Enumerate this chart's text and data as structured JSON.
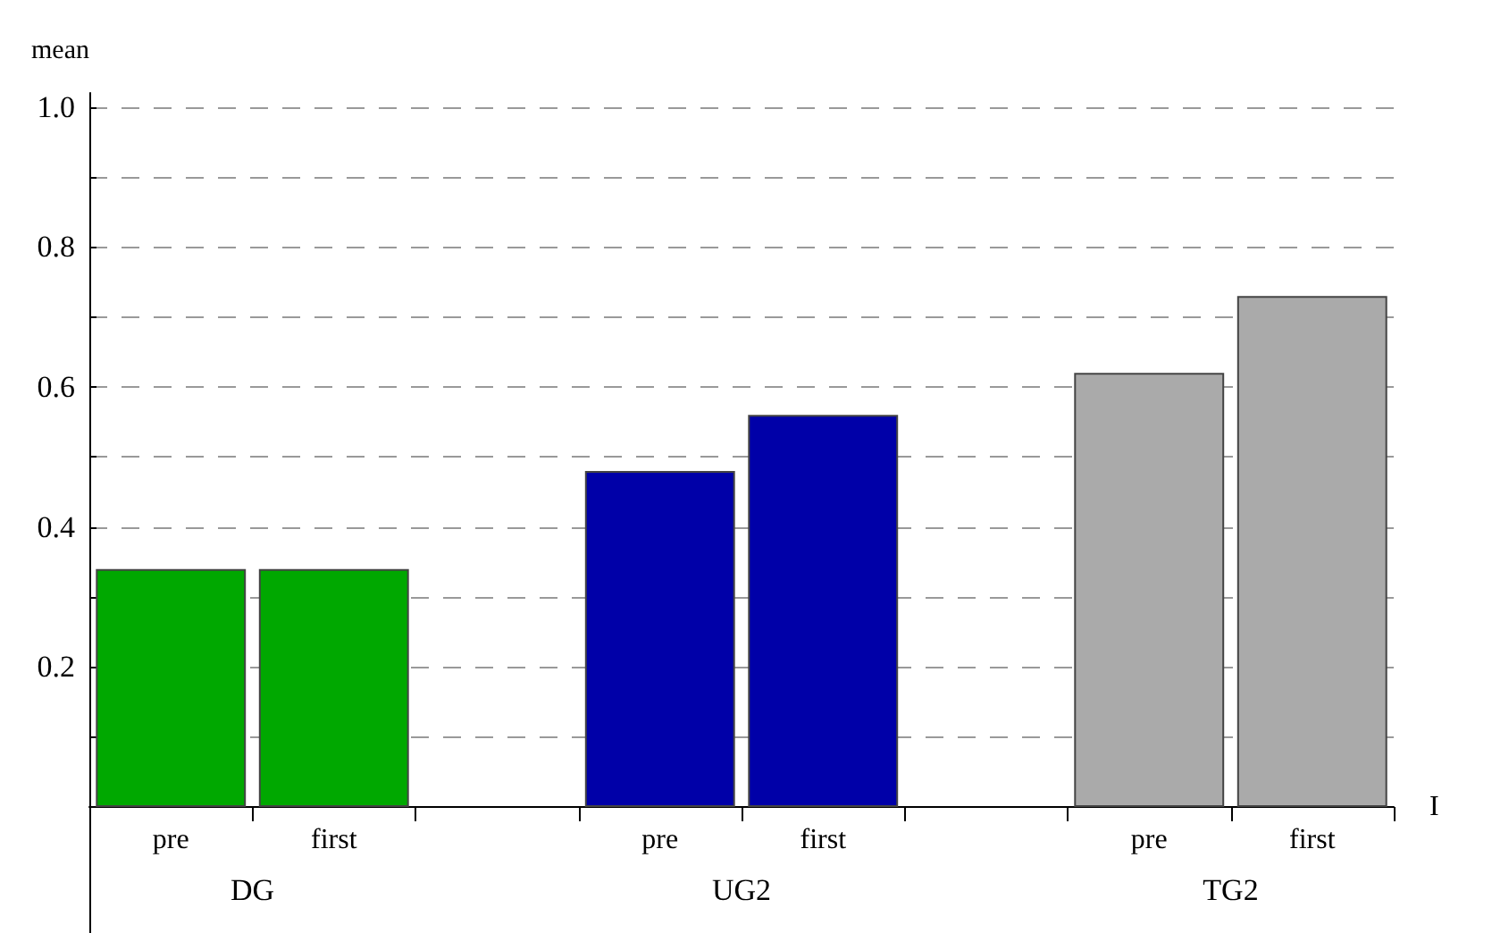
{
  "chart_data": {
    "type": "bar",
    "ylabel": "mean",
    "xlabel": "I",
    "categories": [
      "pre",
      "first",
      null,
      "pre",
      "first",
      null,
      "pre",
      "first"
    ],
    "values": [
      0.34,
      0.34,
      null,
      0.48,
      0.56,
      null,
      0.62,
      0.73
    ],
    "colors": [
      "#00a800",
      "#00a800",
      null,
      "#0000a8",
      "#0000a8",
      null,
      "#aaaaaa",
      "#aaaaaa"
    ],
    "annotations": [
      "DG",
      "UG2",
      "TG2"
    ],
    "ylim": [
      -0.18,
      1.02
    ],
    "yticks": [
      {
        "value": 0.1,
        "label": null
      },
      0.2,
      {
        "value": 0.3,
        "label": null
      },
      0.4,
      {
        "value": 0.5,
        "label": null
      },
      0.6,
      {
        "value": 0.7,
        "label": null
      },
      0.8,
      {
        "value": 0.9,
        "label": null
      },
      {
        "value": 1,
        "label": "1.0"
      }
    ],
    "grid": "y"
  }
}
